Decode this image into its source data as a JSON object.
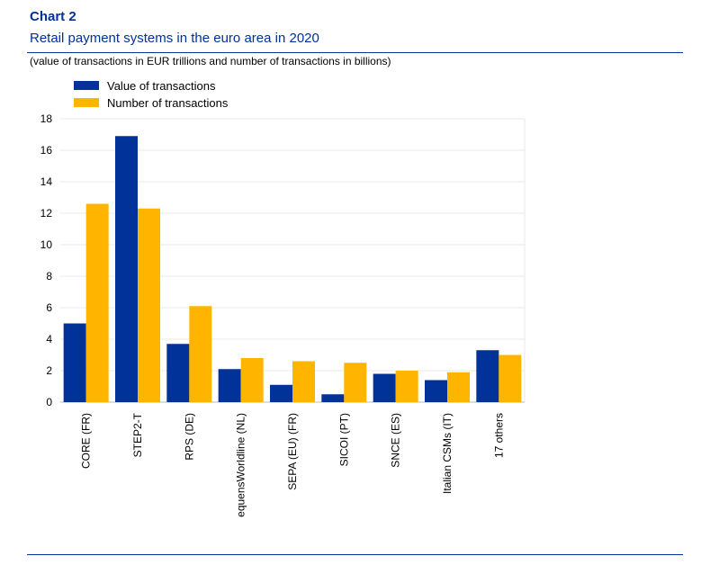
{
  "header": {
    "chart_label": "Chart 2",
    "title": "Retail payment systems in the euro area in 2020",
    "subtitle": "(value of transactions in EUR trillions and number of transactions in billions)"
  },
  "colors": {
    "value": "#003299",
    "number": "#FFB400",
    "grid": "#e8e8e8",
    "rule": "#003299"
  },
  "chart_data": {
    "type": "bar",
    "categories": [
      "CORE (FR)",
      "STEP2-T",
      "RPS (DE)",
      "equensWorldline (NL)",
      "SEPA (EU) (FR)",
      "SICOI (PT)",
      "SNCE (ES)",
      "Italian CSMs (IT)",
      "17 others"
    ],
    "series": [
      {
        "name": "Value of transactions",
        "values": [
          5.0,
          16.9,
          3.7,
          2.1,
          1.1,
          0.5,
          1.8,
          1.4,
          3.3
        ]
      },
      {
        "name": "Number of transactions",
        "values": [
          12.6,
          12.3,
          6.1,
          2.8,
          2.6,
          2.5,
          2.0,
          1.9,
          3.0
        ]
      }
    ],
    "yticks": [
      "0",
      "2",
      "4",
      "6",
      "8",
      "10",
      "12",
      "14",
      "16",
      "18"
    ],
    "ylim": [
      0,
      18
    ],
    "grid": true,
    "legend": "top-left"
  }
}
